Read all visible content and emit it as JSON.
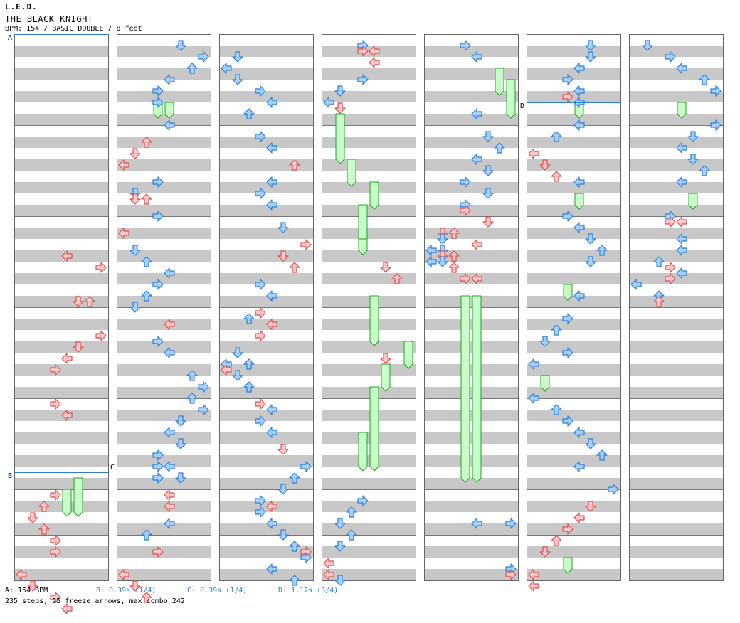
{
  "header": {
    "artist": "L.E.D.",
    "title": "THE BLACK KNIGHT",
    "subtitle": "BPM: 154 / BASIC DOUBLE / 8 feet"
  },
  "footer": {
    "bpm_a": "A: 154 BPM",
    "stop_b": "B: 0.39s (1/4)",
    "stop_c": "C: 0.39s (1/4)",
    "stop_d": "D: 1.17s (3/4)",
    "stats": "235 steps, 25 freeze arrows, max combo 242"
  },
  "markers": [
    {
      "label": "A",
      "col": 0,
      "row": 0
    },
    {
      "label": "B",
      "col": 0,
      "row": 154
    },
    {
      "label": "C",
      "col": 1,
      "row": 151
    },
    {
      "label": "D",
      "col": 5,
      "row": 24
    }
  ],
  "colors": {
    "stripe_dark": "#c8c8c8",
    "stripe_light": "#ffffff",
    "arrow_red_fill": "#ffc8c8",
    "arrow_red_stroke": "#d85050",
    "arrow_blue_fill": "#a8d0ff",
    "arrow_blue_stroke": "#2a7fd4",
    "freeze_fill": "#c8ffc8",
    "freeze_stroke": "#20a020",
    "marker_line": "#2a7fd4"
  },
  "chart_data": {
    "type": "step-chart",
    "columns": 7,
    "measures_per_column": 12,
    "lanes": [
      "L1",
      "D1",
      "U1",
      "R1",
      "L2",
      "D2",
      "U2",
      "R2"
    ],
    "notes": [
      [
        0,
        76,
        4
      ],
      [
        0,
        80,
        7
      ],
      [
        0,
        92,
        5
      ],
      [
        0,
        92,
        6
      ],
      [
        0,
        104,
        7
      ],
      [
        0,
        108,
        5
      ],
      [
        0,
        112,
        4
      ],
      [
        0,
        116,
        3
      ],
      [
        0,
        128,
        3
      ],
      [
        0,
        132,
        4
      ],
      [
        0,
        160,
        3
      ],
      [
        0,
        164,
        2
      ],
      [
        0,
        168,
        1
      ],
      [
        0,
        172,
        2
      ],
      [
        0,
        176,
        3
      ],
      [
        0,
        180,
        3
      ],
      [
        0,
        188,
        0
      ],
      [
        0,
        192,
        1
      ],
      [
        0,
        196,
        3
      ],
      [
        0,
        200,
        4
      ],
      [
        1,
        2,
        5
      ],
      [
        1,
        6,
        7
      ],
      [
        1,
        10,
        6
      ],
      [
        1,
        14,
        4
      ],
      [
        1,
        18,
        3
      ],
      [
        1,
        22,
        3
      ],
      [
        1,
        30,
        4
      ],
      [
        1,
        36,
        2
      ],
      [
        1,
        40,
        1
      ],
      [
        1,
        44,
        0
      ],
      [
        1,
        50,
        3
      ],
      [
        1,
        54,
        1
      ],
      [
        1,
        56,
        1
      ],
      [
        1,
        56,
        2
      ],
      [
        1,
        62,
        3
      ],
      [
        1,
        68,
        0
      ],
      [
        1,
        74,
        1
      ],
      [
        1,
        78,
        2
      ],
      [
        1,
        82,
        4
      ],
      [
        1,
        86,
        3
      ],
      [
        1,
        90,
        2
      ],
      [
        1,
        94,
        1
      ],
      [
        1,
        100,
        4
      ],
      [
        1,
        106,
        3
      ],
      [
        1,
        110,
        4
      ],
      [
        1,
        118,
        6
      ],
      [
        1,
        122,
        7
      ],
      [
        1,
        126,
        6
      ],
      [
        1,
        130,
        7
      ],
      [
        1,
        134,
        5
      ],
      [
        1,
        138,
        4
      ],
      [
        1,
        142,
        5
      ],
      [
        1,
        146,
        3
      ],
      [
        1,
        150,
        3
      ],
      [
        1,
        150,
        4
      ],
      [
        1,
        154,
        3
      ],
      [
        1,
        154,
        5
      ],
      [
        1,
        160,
        4
      ],
      [
        1,
        164,
        4
      ],
      [
        1,
        170,
        4
      ],
      [
        1,
        174,
        2
      ],
      [
        1,
        180,
        3
      ],
      [
        1,
        188,
        0
      ],
      [
        1,
        192,
        1
      ],
      [
        1,
        196,
        2
      ],
      [
        2,
        6,
        1
      ],
      [
        2,
        10,
        0
      ],
      [
        2,
        14,
        1
      ],
      [
        2,
        18,
        3
      ],
      [
        2,
        22,
        4
      ],
      [
        2,
        26,
        2
      ],
      [
        2,
        34,
        3
      ],
      [
        2,
        38,
        4
      ],
      [
        2,
        44,
        6
      ],
      [
        2,
        50,
        4
      ],
      [
        2,
        54,
        3
      ],
      [
        2,
        58,
        4
      ],
      [
        2,
        66,
        5
      ],
      [
        2,
        72,
        7
      ],
      [
        2,
        76,
        5
      ],
      [
        2,
        80,
        6
      ],
      [
        2,
        86,
        3
      ],
      [
        2,
        90,
        4
      ],
      [
        2,
        96,
        3
      ],
      [
        2,
        98,
        2
      ],
      [
        2,
        100,
        4
      ],
      [
        2,
        104,
        3
      ],
      [
        2,
        110,
        1
      ],
      [
        2,
        114,
        0
      ],
      [
        2,
        116,
        0
      ],
      [
        2,
        114,
        2
      ],
      [
        2,
        118,
        1
      ],
      [
        2,
        122,
        2
      ],
      [
        2,
        128,
        3
      ],
      [
        2,
        130,
        4
      ],
      [
        2,
        134,
        3
      ],
      [
        2,
        138,
        4
      ],
      [
        2,
        144,
        5
      ],
      [
        2,
        150,
        7
      ],
      [
        2,
        154,
        6
      ],
      [
        2,
        158,
        5
      ],
      [
        2,
        162,
        3
      ],
      [
        2,
        164,
        4
      ],
      [
        2,
        166,
        3
      ],
      [
        2,
        170,
        4
      ],
      [
        2,
        174,
        5
      ],
      [
        2,
        178,
        6
      ],
      [
        2,
        180,
        7
      ],
      [
        2,
        182,
        7
      ],
      [
        2,
        186,
        4
      ],
      [
        2,
        190,
        6
      ],
      [
        3,
        2,
        3
      ],
      [
        3,
        4,
        3
      ],
      [
        3,
        4,
        4
      ],
      [
        3,
        8,
        4
      ],
      [
        3,
        14,
        3
      ],
      [
        3,
        18,
        1
      ],
      [
        3,
        22,
        0
      ],
      [
        3,
        24,
        1
      ],
      [
        3,
        80,
        5
      ],
      [
        3,
        84,
        6
      ],
      [
        3,
        112,
        5
      ],
      [
        3,
        162,
        3
      ],
      [
        3,
        166,
        2
      ],
      [
        3,
        170,
        1
      ],
      [
        3,
        174,
        2
      ],
      [
        3,
        178,
        1
      ],
      [
        3,
        184,
        0
      ],
      [
        3,
        188,
        0
      ],
      [
        3,
        190,
        1
      ],
      [
        4,
        2,
        3
      ],
      [
        4,
        6,
        4
      ],
      [
        4,
        26,
        4
      ],
      [
        4,
        34,
        5
      ],
      [
        4,
        38,
        6
      ],
      [
        4,
        42,
        4
      ],
      [
        4,
        46,
        5
      ],
      [
        4,
        50,
        3
      ],
      [
        4,
        54,
        5
      ],
      [
        4,
        58,
        3
      ],
      [
        4,
        60,
        3
      ],
      [
        4,
        64,
        5
      ],
      [
        4,
        68,
        1
      ],
      [
        4,
        70,
        1
      ],
      [
        4,
        72,
        4
      ],
      [
        4,
        68,
        2
      ],
      [
        4,
        74,
        0
      ],
      [
        4,
        76,
        2
      ],
      [
        4,
        74,
        1
      ],
      [
        4,
        78,
        0
      ],
      [
        4,
        76,
        1
      ],
      [
        4,
        80,
        2
      ],
      [
        4,
        78,
        1
      ],
      [
        4,
        84,
        3
      ],
      [
        4,
        84,
        4
      ],
      [
        4,
        170,
        4
      ],
      [
        4,
        170,
        7
      ],
      [
        4,
        186,
        7
      ],
      [
        4,
        188,
        7
      ],
      [
        5,
        2,
        5
      ],
      [
        5,
        6,
        5
      ],
      [
        5,
        10,
        4
      ],
      [
        5,
        14,
        3
      ],
      [
        5,
        18,
        4
      ],
      [
        5,
        20,
        3
      ],
      [
        5,
        22,
        4
      ],
      [
        5,
        30,
        4
      ],
      [
        5,
        34,
        2
      ],
      [
        5,
        40,
        0
      ],
      [
        5,
        44,
        1
      ],
      [
        5,
        48,
        2
      ],
      [
        5,
        50,
        4
      ],
      [
        5,
        62,
        3
      ],
      [
        5,
        66,
        4
      ],
      [
        5,
        70,
        5
      ],
      [
        5,
        74,
        6
      ],
      [
        5,
        78,
        5
      ],
      [
        5,
        90,
        4
      ],
      [
        5,
        98,
        3
      ],
      [
        5,
        102,
        2
      ],
      [
        5,
        106,
        1
      ],
      [
        5,
        110,
        3
      ],
      [
        5,
        114,
        0
      ],
      [
        5,
        126,
        0
      ],
      [
        5,
        130,
        2
      ],
      [
        5,
        134,
        3
      ],
      [
        5,
        138,
        4
      ],
      [
        5,
        142,
        5
      ],
      [
        5,
        146,
        6
      ],
      [
        5,
        150,
        4
      ],
      [
        5,
        158,
        7
      ],
      [
        5,
        164,
        5
      ],
      [
        5,
        168,
        4
      ],
      [
        5,
        172,
        3
      ],
      [
        5,
        176,
        2
      ],
      [
        5,
        180,
        1
      ],
      [
        5,
        188,
        0
      ],
      [
        5,
        192,
        0
      ],
      [
        6,
        2,
        1
      ],
      [
        6,
        6,
        3
      ],
      [
        6,
        10,
        4
      ],
      [
        6,
        14,
        6
      ],
      [
        6,
        18,
        7
      ],
      [
        6,
        30,
        7
      ],
      [
        6,
        34,
        5
      ],
      [
        6,
        38,
        4
      ],
      [
        6,
        42,
        5
      ],
      [
        6,
        46,
        6
      ],
      [
        6,
        50,
        4
      ],
      [
        6,
        62,
        3
      ],
      [
        6,
        64,
        4
      ],
      [
        6,
        64,
        3
      ],
      [
        6,
        70,
        4
      ],
      [
        6,
        74,
        4
      ],
      [
        6,
        78,
        2
      ],
      [
        6,
        80,
        3
      ],
      [
        6,
        82,
        4
      ],
      [
        6,
        84,
        3
      ],
      [
        6,
        86,
        0
      ],
      [
        6,
        90,
        2
      ],
      [
        6,
        92,
        2
      ]
    ],
    "shocks": [
      [
        0,
        0,
        0
      ]
    ],
    "freezes": [
      [
        0,
        158,
        4,
        166
      ],
      [
        0,
        154,
        5,
        166
      ],
      [
        1,
        22,
        3,
        26
      ],
      [
        1,
        22,
        4,
        26
      ],
      [
        3,
        26,
        1,
        42
      ],
      [
        3,
        42,
        2,
        50
      ],
      [
        3,
        50,
        4,
        58
      ],
      [
        3,
        58,
        3,
        74
      ],
      [
        3,
        90,
        4,
        106
      ],
      [
        3,
        106,
        7,
        114
      ],
      [
        3,
        114,
        5,
        122
      ],
      [
        3,
        122,
        4,
        150
      ],
      [
        3,
        138,
        3,
        150
      ],
      [
        4,
        10,
        6,
        18
      ],
      [
        4,
        14,
        7,
        26
      ],
      [
        4,
        90,
        3,
        154
      ],
      [
        4,
        90,
        4,
        154
      ],
      [
        5,
        22,
        4,
        26
      ],
      [
        5,
        54,
        4,
        58
      ],
      [
        5,
        86,
        3,
        90
      ],
      [
        5,
        118,
        1,
        122
      ],
      [
        5,
        182,
        3,
        186
      ],
      [
        6,
        22,
        4,
        26
      ],
      [
        6,
        54,
        5,
        58
      ],
      [
        3,
        70,
        3,
        74
      ]
    ],
    "title": "THE BLACK KNIGHT"
  }
}
